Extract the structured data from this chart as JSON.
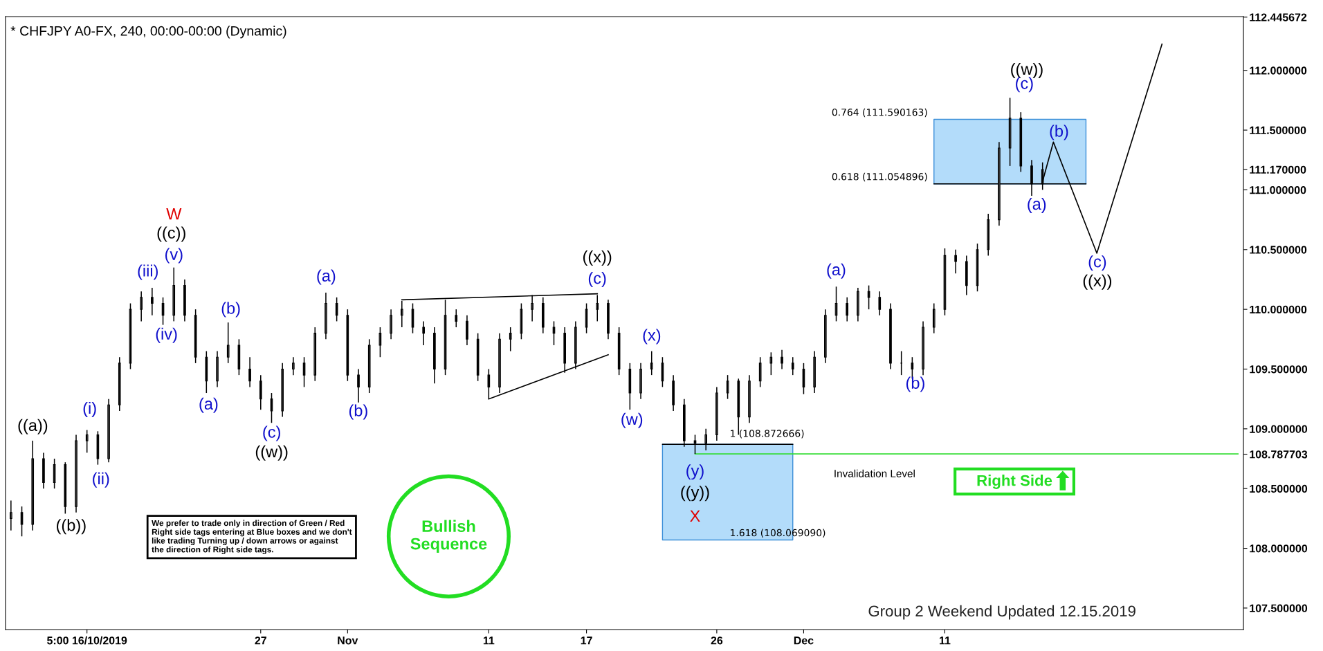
{
  "chart_data": {
    "type": "candlestick",
    "title": "* CHFJPY A0-FX, 240, 00:00-00:00 (Dynamic)",
    "categories": [
      null,
      null,
      null,
      null,
      null,
      null,
      null,
      "5:00 16/10/2019",
      null,
      null,
      null,
      null,
      null,
      null,
      null,
      null,
      null,
      null,
      null,
      null,
      null,
      null,
      null,
      "27",
      null,
      null,
      null,
      null,
      null,
      null,
      null,
      "Nov",
      null,
      null,
      null,
      null,
      null,
      null,
      null,
      null,
      null,
      null,
      null,
      null,
      "11",
      null,
      null,
      null,
      null,
      null,
      null,
      null,
      null,
      "17",
      null,
      null,
      null,
      null,
      null,
      null,
      null,
      null,
      null,
      null,
      null,
      "26",
      null,
      null,
      null,
      null,
      null,
      null,
      null,
      "Dec",
      null,
      null,
      null,
      null,
      null,
      null,
      null,
      null,
      null,
      null,
      null,
      null,
      "11",
      null,
      null,
      null,
      null,
      null,
      null,
      null,
      null,
      null,
      null,
      null,
      null,
      null,
      null,
      null,
      null,
      null,
      null,
      null,
      null,
      null,
      null,
      null,
      null,
      null,
      null,
      null
    ],
    "ohlc": [
      [
        108.25,
        108.4,
        108.15,
        108.3
      ],
      [
        108.3,
        108.35,
        108.1,
        108.2
      ],
      [
        108.2,
        108.9,
        108.15,
        108.75
      ],
      [
        108.75,
        108.8,
        108.5,
        108.55
      ],
      [
        108.55,
        108.75,
        108.5,
        108.7
      ],
      [
        108.7,
        108.72,
        108.29,
        108.35
      ],
      [
        108.35,
        108.95,
        108.3,
        108.9
      ],
      [
        108.9,
        108.99,
        108.8,
        108.95
      ],
      [
        108.95,
        108.98,
        108.7,
        108.75
      ],
      [
        108.75,
        109.25,
        108.72,
        109.2
      ],
      [
        109.2,
        109.6,
        109.15,
        109.55
      ],
      [
        109.55,
        110.05,
        109.5,
        110.0
      ],
      [
        110.0,
        110.15,
        109.9,
        110.1
      ],
      [
        110.1,
        110.18,
        109.95,
        110.05
      ],
      [
        110.05,
        110.1,
        109.87,
        109.95
      ],
      [
        109.95,
        110.35,
        109.9,
        110.2
      ],
      [
        110.2,
        110.25,
        109.9,
        109.95
      ],
      [
        109.95,
        110.0,
        109.55,
        109.6
      ],
      [
        109.6,
        109.65,
        109.3,
        109.4
      ],
      [
        109.4,
        109.65,
        109.35,
        109.6
      ],
      [
        109.6,
        109.89,
        109.55,
        109.7
      ],
      [
        109.7,
        109.75,
        109.45,
        109.5
      ],
      [
        109.5,
        109.6,
        109.35,
        109.4
      ],
      [
        109.4,
        109.45,
        109.16,
        109.25
      ],
      [
        109.25,
        109.3,
        109.05,
        109.15
      ],
      [
        109.15,
        109.55,
        109.1,
        109.5
      ],
      [
        109.5,
        109.6,
        109.45,
        109.55
      ],
      [
        109.55,
        109.6,
        109.35,
        109.45
      ],
      [
        109.45,
        109.85,
        109.4,
        109.8
      ],
      [
        109.8,
        110.14,
        109.75,
        110.05
      ],
      [
        110.05,
        110.1,
        109.9,
        109.95
      ],
      [
        109.95,
        110.0,
        109.4,
        109.45
      ],
      [
        109.45,
        109.5,
        109.22,
        109.35
      ],
      [
        109.35,
        109.75,
        109.3,
        109.7
      ],
      [
        109.7,
        109.85,
        109.6,
        109.8
      ],
      [
        109.8,
        110.0,
        109.75,
        109.95
      ],
      [
        109.95,
        110.07,
        109.85,
        110.0
      ],
      [
        110.0,
        110.05,
        109.8,
        109.85
      ],
      [
        109.85,
        109.9,
        109.7,
        109.8
      ],
      [
        109.8,
        109.85,
        109.38,
        109.5
      ],
      [
        109.5,
        110.08,
        109.45,
        109.95
      ],
      [
        109.95,
        110.0,
        109.85,
        109.9
      ],
      [
        109.9,
        109.95,
        109.7,
        109.75
      ],
      [
        109.75,
        109.8,
        109.4,
        109.45
      ],
      [
        109.45,
        109.5,
        109.25,
        109.35
      ],
      [
        109.35,
        109.8,
        109.3,
        109.75
      ],
      [
        109.75,
        109.85,
        109.65,
        109.8
      ],
      [
        109.8,
        110.05,
        109.75,
        110.0
      ],
      [
        110.0,
        110.12,
        109.9,
        110.05
      ],
      [
        110.05,
        110.1,
        109.8,
        109.85
      ],
      [
        109.85,
        109.9,
        109.7,
        109.8
      ],
      [
        109.8,
        109.85,
        109.47,
        109.55
      ],
      [
        109.55,
        109.9,
        109.5,
        109.85
      ],
      [
        109.85,
        110.05,
        109.8,
        110.0
      ],
      [
        110.0,
        110.12,
        109.9,
        110.05
      ],
      [
        110.05,
        110.08,
        109.75,
        109.8
      ],
      [
        109.8,
        109.85,
        109.45,
        109.5
      ],
      [
        109.5,
        109.55,
        109.16,
        109.3
      ],
      [
        109.3,
        109.55,
        109.25,
        109.5
      ],
      [
        109.5,
        109.65,
        109.45,
        109.55
      ],
      [
        109.55,
        109.6,
        109.35,
        109.4
      ],
      [
        109.4,
        109.45,
        109.15,
        109.2
      ],
      [
        109.2,
        109.25,
        108.85,
        108.9
      ],
      [
        108.9,
        108.95,
        108.79,
        108.88
      ],
      [
        108.88,
        109.0,
        108.82,
        108.95
      ],
      [
        108.95,
        109.35,
        108.9,
        109.3
      ],
      [
        109.3,
        109.45,
        109.25,
        109.4
      ],
      [
        109.4,
        109.42,
        108.95,
        109.1
      ],
      [
        109.1,
        109.45,
        109.05,
        109.4
      ],
      [
        109.4,
        109.6,
        109.35,
        109.55
      ],
      [
        109.55,
        109.64,
        109.45,
        109.6
      ],
      [
        109.6,
        109.66,
        109.5,
        109.55
      ],
      [
        109.55,
        109.6,
        109.45,
        109.5
      ],
      [
        109.5,
        109.55,
        109.29,
        109.35
      ],
      [
        109.35,
        109.65,
        109.3,
        109.6
      ],
      [
        109.6,
        110.0,
        109.55,
        109.95
      ],
      [
        109.95,
        110.19,
        109.9,
        110.05
      ],
      [
        110.05,
        110.1,
        109.9,
        109.95
      ],
      [
        109.95,
        110.18,
        109.9,
        110.15
      ],
      [
        110.15,
        110.2,
        110.0,
        110.1
      ],
      [
        110.1,
        110.15,
        109.95,
        110.0
      ],
      [
        110.0,
        110.05,
        109.5,
        109.55
      ],
      [
        109.55,
        109.65,
        109.45,
        109.55
      ],
      [
        109.55,
        109.6,
        109.42,
        109.5
      ],
      [
        109.5,
        109.9,
        109.45,
        109.85
      ],
      [
        109.85,
        110.05,
        109.8,
        110.0
      ],
      [
        110.0,
        110.51,
        109.95,
        110.45
      ],
      [
        110.45,
        110.5,
        110.3,
        110.4
      ],
      [
        110.4,
        110.45,
        110.12,
        110.2
      ],
      [
        110.2,
        110.55,
        110.15,
        110.5
      ],
      [
        110.5,
        110.8,
        110.45,
        110.75
      ],
      [
        110.75,
        111.4,
        110.7,
        111.35
      ],
      [
        111.35,
        111.77,
        111.2,
        111.6
      ],
      [
        111.6,
        111.65,
        111.15,
        111.2
      ],
      [
        111.2,
        111.25,
        110.95,
        111.05
      ],
      [
        111.05,
        111.23,
        111.0,
        111.17
      ],
      null,
      null,
      null,
      null,
      null,
      null,
      null,
      null,
      null,
      null,
      null,
      null,
      null,
      null,
      null,
      null,
      null,
      null
    ],
    "color": "#000000",
    "series": [
      {
        "type": "line",
        "color": "#000000",
        "values": [
          null,
          null,
          null,
          null,
          null,
          null,
          null,
          null,
          null,
          null,
          null,
          null,
          null,
          null,
          null,
          null,
          null,
          null,
          null,
          null,
          null,
          null,
          null,
          null,
          null,
          null,
          null,
          null,
          null,
          null,
          null,
          null,
          null,
          null,
          null,
          null,
          110.08,
          null,
          null,
          null,
          null,
          null,
          null,
          null,
          null,
          null,
          null,
          null,
          null,
          null,
          null,
          null,
          null,
          null,
          110.13,
          null,
          null,
          null,
          null,
          null,
          null,
          null,
          null,
          null,
          null,
          null,
          null,
          null,
          null,
          null,
          null,
          null,
          null,
          null,
          null,
          null,
          null,
          null,
          null,
          null,
          null,
          null,
          null,
          null,
          null,
          null,
          null,
          null,
          null,
          null,
          null,
          null,
          null,
          null,
          null,
          null,
          null,
          null,
          null,
          null,
          null,
          null,
          null,
          null,
          null,
          null,
          null,
          null,
          null,
          null,
          null,
          null,
          null,
          null
        ]
      },
      {
        "type": "line",
        "color": "#000000",
        "values": [
          null,
          null,
          null,
          null,
          null,
          null,
          null,
          null,
          null,
          null,
          null,
          null,
          null,
          null,
          null,
          null,
          null,
          null,
          null,
          null,
          null,
          null,
          null,
          null,
          null,
          null,
          null,
          null,
          null,
          null,
          null,
          null,
          null,
          null,
          null,
          null,
          null,
          null,
          null,
          null,
          null,
          null,
          null,
          null,
          109.25,
          null,
          null,
          null,
          null,
          null,
          null,
          null,
          null,
          null,
          null,
          109.62,
          null,
          null,
          null,
          null,
          null,
          null,
          null,
          null,
          null,
          null,
          null,
          null,
          null,
          null,
          null,
          null,
          null,
          null,
          null,
          null,
          null,
          null,
          null,
          null,
          null,
          null,
          null,
          null,
          null,
          null,
          null,
          null,
          null,
          null,
          null,
          null,
          null,
          null,
          null,
          null,
          null,
          null,
          null,
          null,
          null,
          null,
          null,
          null,
          null,
          null,
          null,
          null,
          null,
          null,
          null,
          null,
          null,
          null
        ]
      },
      {
        "type": "line",
        "color": "#000000",
        "values": [
          null,
          null,
          null,
          null,
          null,
          null,
          null,
          null,
          null,
          null,
          null,
          null,
          null,
          null,
          null,
          null,
          null,
          null,
          null,
          null,
          null,
          null,
          null,
          null,
          null,
          null,
          null,
          null,
          null,
          null,
          null,
          null,
          null,
          null,
          null,
          null,
          null,
          null,
          null,
          null,
          null,
          null,
          null,
          null,
          null,
          null,
          null,
          null,
          null,
          null,
          null,
          null,
          null,
          null,
          null,
          null,
          null,
          null,
          null,
          null,
          null,
          null,
          null,
          null,
          null,
          null,
          null,
          null,
          null,
          null,
          null,
          null,
          null,
          null,
          null,
          null,
          null,
          null,
          null,
          null,
          null,
          null,
          null,
          null,
          null,
          null,
          null,
          null,
          null,
          null,
          null,
          null,
          null,
          null,
          null,
          111.07,
          111.4,
          null,
          null,
          null,
          110.47,
          null,
          null,
          null,
          null,
          null,
          112.22,
          null,
          null,
          null,
          null,
          null,
          null,
          null
        ]
      },
      {
        "type": "line",
        "color": "#33dd33",
        "values": [
          null,
          null,
          null,
          null,
          null,
          null,
          null,
          null,
          null,
          null,
          null,
          null,
          null,
          null,
          null,
          null,
          null,
          null,
          null,
          null,
          null,
          null,
          null,
          null,
          null,
          null,
          null,
          null,
          null,
          null,
          null,
          null,
          null,
          null,
          null,
          null,
          null,
          null,
          null,
          null,
          null,
          null,
          null,
          null,
          null,
          null,
          null,
          null,
          null,
          null,
          null,
          null,
          null,
          null,
          null,
          null,
          null,
          null,
          null,
          null,
          null,
          null,
          null,
          108.79,
          108.79,
          108.79,
          108.79,
          108.79,
          108.79,
          108.79,
          108.79,
          108.79,
          108.79,
          108.79,
          108.79,
          108.79,
          108.79,
          108.79,
          108.79,
          108.79,
          108.79,
          108.79,
          108.79,
          108.79,
          108.79,
          108.79,
          108.79,
          108.79,
          108.79,
          108.79,
          108.79,
          108.79,
          108.79,
          108.79,
          108.79,
          108.79,
          108.79,
          108.79,
          108.79,
          108.79,
          108.79,
          108.79,
          108.79,
          108.79,
          108.79,
          108.79,
          108.79,
          108.79,
          108.79,
          108.79,
          108.79,
          108.79,
          108.79,
          108.79
        ]
      },
      {
        "type": "line",
        "color": "#000000",
        "values": [
          null,
          null,
          null,
          null,
          null,
          null,
          null,
          null,
          null,
          null,
          null,
          null,
          null,
          null,
          null,
          null,
          null,
          null,
          null,
          null,
          null,
          null,
          null,
          null,
          null,
          null,
          null,
          null,
          null,
          null,
          null,
          null,
          null,
          null,
          null,
          null,
          null,
          null,
          null,
          null,
          null,
          null,
          null,
          null,
          null,
          null,
          null,
          null,
          null,
          null,
          null,
          null,
          null,
          null,
          null,
          null,
          null,
          null,
          null,
          null,
          108.87,
          108.87,
          108.87,
          108.87,
          108.87,
          108.87,
          108.87,
          108.87,
          108.87,
          108.87,
          108.87,
          108.87,
          108.87,
          null,
          null,
          null,
          null,
          null,
          null,
          null,
          null,
          null,
          null,
          null,
          null,
          null,
          null,
          null,
          null,
          null,
          null,
          null,
          null,
          null,
          null,
          null,
          null,
          null,
          null,
          null,
          null,
          null,
          null,
          null,
          null,
          null,
          null,
          null,
          null,
          null,
          null,
          null,
          null,
          null
        ],
        "upper": [
          null,
          null,
          null,
          null,
          null,
          null,
          null,
          null,
          null,
          null,
          null,
          null,
          null,
          null,
          null,
          null,
          null,
          null,
          null,
          null,
          null,
          null,
          null,
          null,
          null,
          null,
          null,
          null,
          null,
          null,
          null,
          null,
          null,
          null,
          null,
          null,
          null,
          null,
          null,
          null,
          null,
          null,
          null,
          null,
          null,
          null,
          null,
          null,
          null,
          null,
          null,
          null,
          null,
          null,
          null,
          null,
          null,
          null,
          null,
          null,
          108.87,
          108.87,
          108.87,
          108.87,
          108.87,
          108.87,
          108.87,
          108.87,
          108.87,
          108.87,
          108.87,
          108.87,
          108.87,
          null,
          null,
          null,
          null,
          null,
          null,
          null,
          null,
          null,
          null,
          null,
          null,
          null,
          null,
          null,
          null,
          null,
          null,
          null,
          null,
          null,
          null,
          null,
          null,
          null,
          null,
          null,
          null,
          null,
          null,
          null,
          null,
          null,
          null,
          null,
          null,
          null,
          null,
          null,
          null,
          null
        ],
        "lower": [
          null,
          null,
          null,
          null,
          null,
          null,
          null,
          null,
          null,
          null,
          null,
          null,
          null,
          null,
          null,
          null,
          null,
          null,
          null,
          null,
          null,
          null,
          null,
          null,
          null,
          null,
          null,
          null,
          null,
          null,
          null,
          null,
          null,
          null,
          null,
          null,
          null,
          null,
          null,
          null,
          null,
          null,
          null,
          null,
          null,
          null,
          null,
          null,
          null,
          null,
          null,
          null,
          null,
          null,
          null,
          null,
          null,
          null,
          null,
          null,
          108.07,
          108.07,
          108.07,
          108.07,
          108.07,
          108.07,
          108.07,
          108.07,
          108.07,
          108.07,
          108.07,
          108.07,
          108.07,
          null,
          null,
          null,
          null,
          null,
          null,
          null,
          null,
          null,
          null,
          null,
          null,
          null,
          null,
          null,
          null,
          null,
          null,
          null,
          null,
          null,
          null,
          null,
          null,
          null,
          null,
          null,
          null,
          null,
          null,
          null,
          null,
          null,
          null,
          null,
          null,
          null,
          null,
          null,
          null,
          null
        ]
      },
      {
        "type": "line",
        "color": "#000000",
        "values": [
          null,
          null,
          null,
          null,
          null,
          null,
          null,
          null,
          null,
          null,
          null,
          null,
          null,
          null,
          null,
          null,
          null,
          null,
          null,
          null,
          null,
          null,
          null,
          null,
          null,
          null,
          null,
          null,
          null,
          null,
          null,
          null,
          null,
          null,
          null,
          null,
          null,
          null,
          null,
          null,
          null,
          null,
          null,
          null,
          null,
          null,
          null,
          null,
          null,
          null,
          null,
          null,
          null,
          null,
          null,
          null,
          null,
          null,
          null,
          null,
          null,
          null,
          null,
          null,
          null,
          null,
          null,
          null,
          null,
          null,
          null,
          null,
          null,
          null,
          null,
          null,
          null,
          null,
          null,
          null,
          null,
          null,
          null,
          null,
          null,
          111.05,
          111.05,
          111.05,
          111.05,
          111.05,
          111.05,
          111.05,
          111.05,
          111.05,
          111.05,
          111.05,
          111.05,
          111.05,
          111.05,
          111.05,
          null,
          null,
          null,
          null,
          null,
          null,
          null,
          null,
          null,
          null,
          null,
          null,
          null,
          null
        ],
        "upper": [
          null,
          null,
          null,
          null,
          null,
          null,
          null,
          null,
          null,
          null,
          null,
          null,
          null,
          null,
          null,
          null,
          null,
          null,
          null,
          null,
          null,
          null,
          null,
          null,
          null,
          null,
          null,
          null,
          null,
          null,
          null,
          null,
          null,
          null,
          null,
          null,
          null,
          null,
          null,
          null,
          null,
          null,
          null,
          null,
          null,
          null,
          null,
          null,
          null,
          null,
          null,
          null,
          null,
          null,
          null,
          null,
          null,
          null,
          null,
          null,
          null,
          null,
          null,
          null,
          null,
          null,
          null,
          null,
          null,
          null,
          null,
          null,
          null,
          null,
          null,
          null,
          null,
          null,
          null,
          null,
          null,
          null,
          null,
          null,
          null,
          111.59,
          111.59,
          111.59,
          111.59,
          111.59,
          111.59,
          111.59,
          111.59,
          111.59,
          111.59,
          111.59,
          111.59,
          111.59,
          111.59,
          111.59,
          null,
          null,
          null,
          null,
          null,
          null,
          null,
          null,
          null,
          null,
          null,
          null,
          null,
          null
        ],
        "lower": [
          null,
          null,
          null,
          null,
          null,
          null,
          null,
          null,
          null,
          null,
          null,
          null,
          null,
          null,
          null,
          null,
          null,
          null,
          null,
          null,
          null,
          null,
          null,
          null,
          null,
          null,
          null,
          null,
          null,
          null,
          null,
          null,
          null,
          null,
          null,
          null,
          null,
          null,
          null,
          null,
          null,
          null,
          null,
          null,
          null,
          null,
          null,
          null,
          null,
          null,
          null,
          null,
          null,
          null,
          null,
          null,
          null,
          null,
          null,
          null,
          null,
          null,
          null,
          null,
          null,
          null,
          null,
          null,
          null,
          null,
          null,
          null,
          null,
          null,
          null,
          null,
          null,
          null,
          null,
          null,
          null,
          null,
          null,
          null,
          null,
          111.05,
          111.05,
          111.05,
          111.05,
          111.05,
          111.05,
          111.05,
          111.05,
          111.05,
          111.05,
          111.05,
          111.05,
          111.05,
          111.05,
          111.05,
          null,
          null,
          null,
          null,
          null,
          null,
          null,
          null,
          null,
          null,
          null,
          null,
          null,
          null
        ]
      }
    ],
    "ylim": [
      107.32,
      112.45
    ],
    "yticks": [
      {
        "value": 107.5,
        "label": "107.500000"
      },
      {
        "value": 108,
        "label": "108.000000"
      },
      {
        "value": 108.5,
        "label": "108.500000"
      },
      {
        "value": 108.787703,
        "label": "108.787703"
      },
      {
        "value": 109,
        "label": "109.000000"
      },
      {
        "value": 109.5,
        "label": "109.500000"
      },
      {
        "value": 110,
        "label": "110.000000"
      },
      {
        "value": 110.5,
        "label": "110.500000"
      },
      {
        "value": 111,
        "label": "111.000000"
      },
      {
        "value": 111.17,
        "label": "111.170000"
      },
      {
        "value": 111.5,
        "label": "111.500000"
      },
      {
        "value": 112,
        "label": "112.000000"
      },
      {
        "value": 112.445672,
        "label": "112.445672"
      }
    ],
    "grid": false,
    "legend": false,
    "annotations": [
      "((a))",
      "((b))",
      "(i)",
      "(ii)",
      "(iii)",
      "(iv)",
      "(v)",
      "((c))",
      "W",
      "(a)",
      "(b)",
      "(c)",
      "((w))",
      "(a)",
      "(b)",
      "((x))",
      "(c)",
      "(w)",
      "(x)",
      "(y)",
      "((y))",
      "X",
      "1 (108.872666)",
      "1.618 (108.069090)",
      "Invalidation Level",
      "(a)",
      "(b)",
      "0.764 (111.590163)",
      "0.618 (111.054896)",
      "((w))",
      "(c)",
      "(b)",
      "(a)",
      "(c)",
      "((x))",
      "We prefer to trade only in direction of Green / Red\nRight side tags entering at Blue boxes and we don't\nlike trading Turning up / down arrows or against\nthe direction of Right side tags.",
      "Bullish\nSequence",
      "Right Side",
      "Group 2 Weekend Updated 12.15.2019"
    ]
  }
}
